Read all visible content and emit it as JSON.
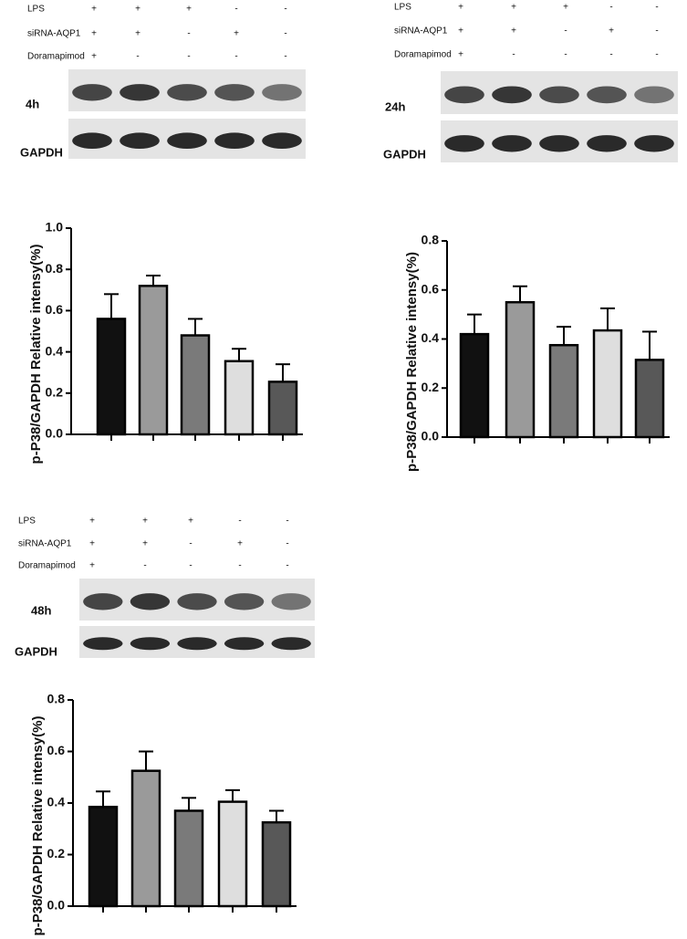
{
  "chart_data": [
    {
      "type": "bar",
      "blot_label": "4h",
      "loading_control": "GAPDH",
      "conditions": [
        {
          "name": "LPS",
          "marks": [
            "+",
            "+",
            "+",
            "-",
            "-"
          ]
        },
        {
          "name": "siRNA-AQP1",
          "marks": [
            "+",
            "+",
            "-",
            "+",
            "-"
          ]
        },
        {
          "name": "Doramapimod",
          "marks": [
            "+",
            "-",
            "-",
            "-",
            "-"
          ]
        }
      ],
      "y_label": "p-P38/GAPDH Relative intensy(%)",
      "categories": [
        null,
        null,
        null,
        null,
        null
      ],
      "values": [
        0.56,
        0.72,
        0.48,
        0.355,
        0.255
      ],
      "errors": [
        0.12,
        0.05,
        0.08,
        0.06,
        0.085
      ],
      "colors": [
        "#111111",
        "#9a9a9a",
        "#7a7a7a",
        "#dedede",
        "#585858"
      ],
      "ylim": [
        0,
        1.0
      ],
      "yticks": [
        {
          "value": 0,
          "label": "0.0"
        },
        0.2,
        0.4,
        0.6,
        0.8,
        {
          "value": 1.0,
          "label": "1.0"
        }
      ]
    },
    {
      "type": "bar",
      "blot_label": "24h",
      "loading_control": "GAPDH",
      "conditions": [
        {
          "name": "LPS",
          "marks": [
            "+",
            "+",
            "+",
            "-",
            "-"
          ]
        },
        {
          "name": "siRNA-AQP1",
          "marks": [
            "+",
            "+",
            "-",
            "+",
            "-"
          ]
        },
        {
          "name": "Doramapimod",
          "marks": [
            "+",
            "-",
            "-",
            "-",
            "-"
          ]
        }
      ],
      "y_label": "p-P38/GAPDH Relative intensy(%)",
      "categories": [
        null,
        null,
        null,
        null,
        null
      ],
      "values": [
        0.42,
        0.55,
        0.375,
        0.435,
        0.315
      ],
      "errors": [
        0.08,
        0.065,
        0.075,
        0.09,
        0.115
      ],
      "colors": [
        "#111111",
        "#9a9a9a",
        "#7a7a7a",
        "#dedede",
        "#585858"
      ],
      "ylim": [
        0,
        0.8
      ],
      "yticks": [
        {
          "value": 0,
          "label": "0.0"
        },
        0.2,
        0.4,
        0.6,
        0.8
      ]
    },
    {
      "type": "bar",
      "blot_label": "48h",
      "loading_control": "GAPDH",
      "conditions": [
        {
          "name": "LPS",
          "marks": [
            "+",
            "+",
            "+",
            "-",
            "-"
          ]
        },
        {
          "name": "siRNA-AQP1",
          "marks": [
            "+",
            "+",
            "-",
            "+",
            "-"
          ]
        },
        {
          "name": "Doramapimod",
          "marks": [
            "+",
            "-",
            "-",
            "-",
            "-"
          ]
        }
      ],
      "y_label": "p-P38/GAPDH Relative intensy(%)",
      "categories": [
        null,
        null,
        null,
        null,
        null
      ],
      "values": [
        0.385,
        0.525,
        0.37,
        0.405,
        0.325
      ],
      "errors": [
        0.06,
        0.075,
        0.05,
        0.045,
        0.045
      ],
      "colors": [
        "#111111",
        "#9a9a9a",
        "#7a7a7a",
        "#dedede",
        "#585858"
      ],
      "ylim": [
        0,
        0.8
      ],
      "yticks": [
        {
          "value": 0,
          "label": "0.0"
        },
        0.2,
        0.4,
        0.6,
        0.8
      ]
    }
  ]
}
